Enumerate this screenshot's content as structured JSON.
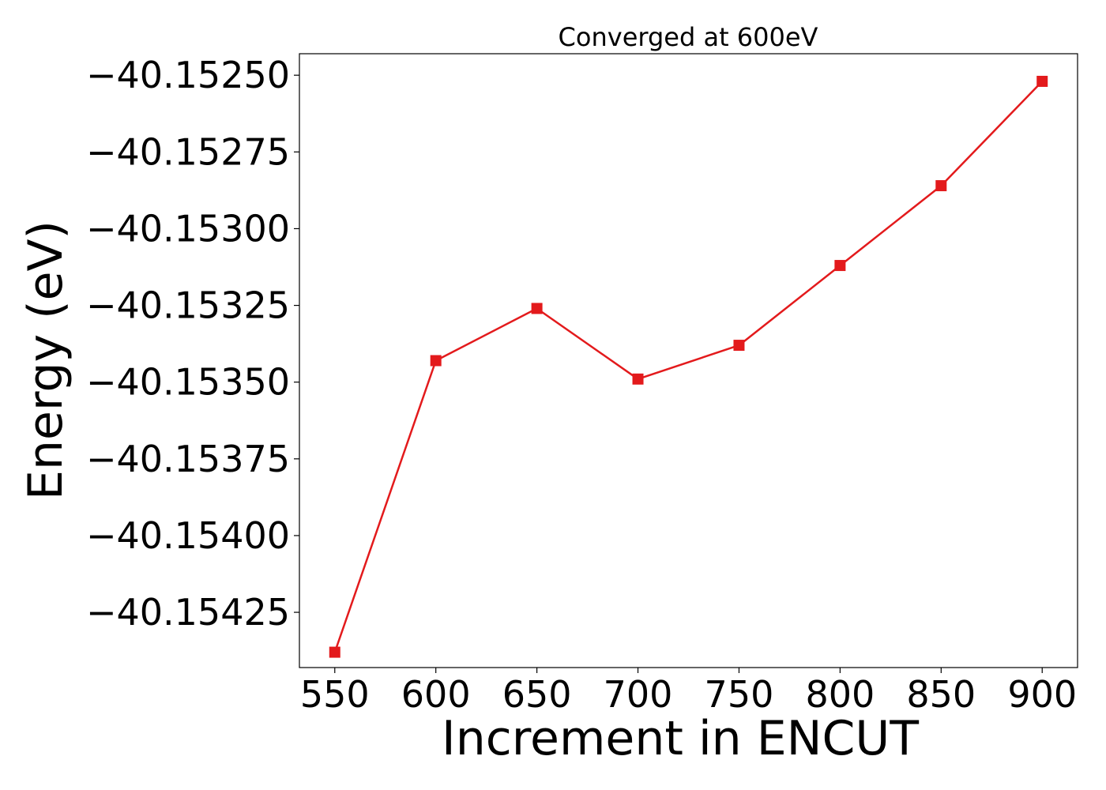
{
  "chart_data": {
    "type": "line",
    "title": "Converged at 600eV",
    "xlabel": "Increment in ENCUT",
    "ylabel": "Energy (eV)",
    "x": [
      550,
      600,
      650,
      700,
      750,
      800,
      850,
      900
    ],
    "series": [
      {
        "values": [
          -40.15438,
          -40.15343,
          -40.15326,
          -40.15349,
          -40.15338,
          -40.15312,
          -40.15286,
          -40.15252
        ],
        "color": "#e31a1c",
        "marker": "square"
      }
    ],
    "x_ticks": [
      550,
      600,
      650,
      700,
      750,
      800,
      850,
      900
    ],
    "x_tick_labels": [
      "550",
      "600",
      "650",
      "700",
      "750",
      "800",
      "850",
      "900"
    ],
    "y_ticks": [
      -40.1525,
      -40.15275,
      -40.153,
      -40.15325,
      -40.1535,
      -40.15375,
      -40.154,
      -40.15425
    ],
    "y_tick_labels": [
      "−40.15250",
      "−40.15275",
      "−40.15300",
      "−40.15325",
      "−40.15350",
      "−40.15375",
      "−40.15400",
      "−40.15425"
    ],
    "xlim": [
      532.5,
      917.5
    ],
    "ylim": [
      -40.15443,
      -40.15243
    ],
    "grid": false,
    "legend": "none"
  }
}
